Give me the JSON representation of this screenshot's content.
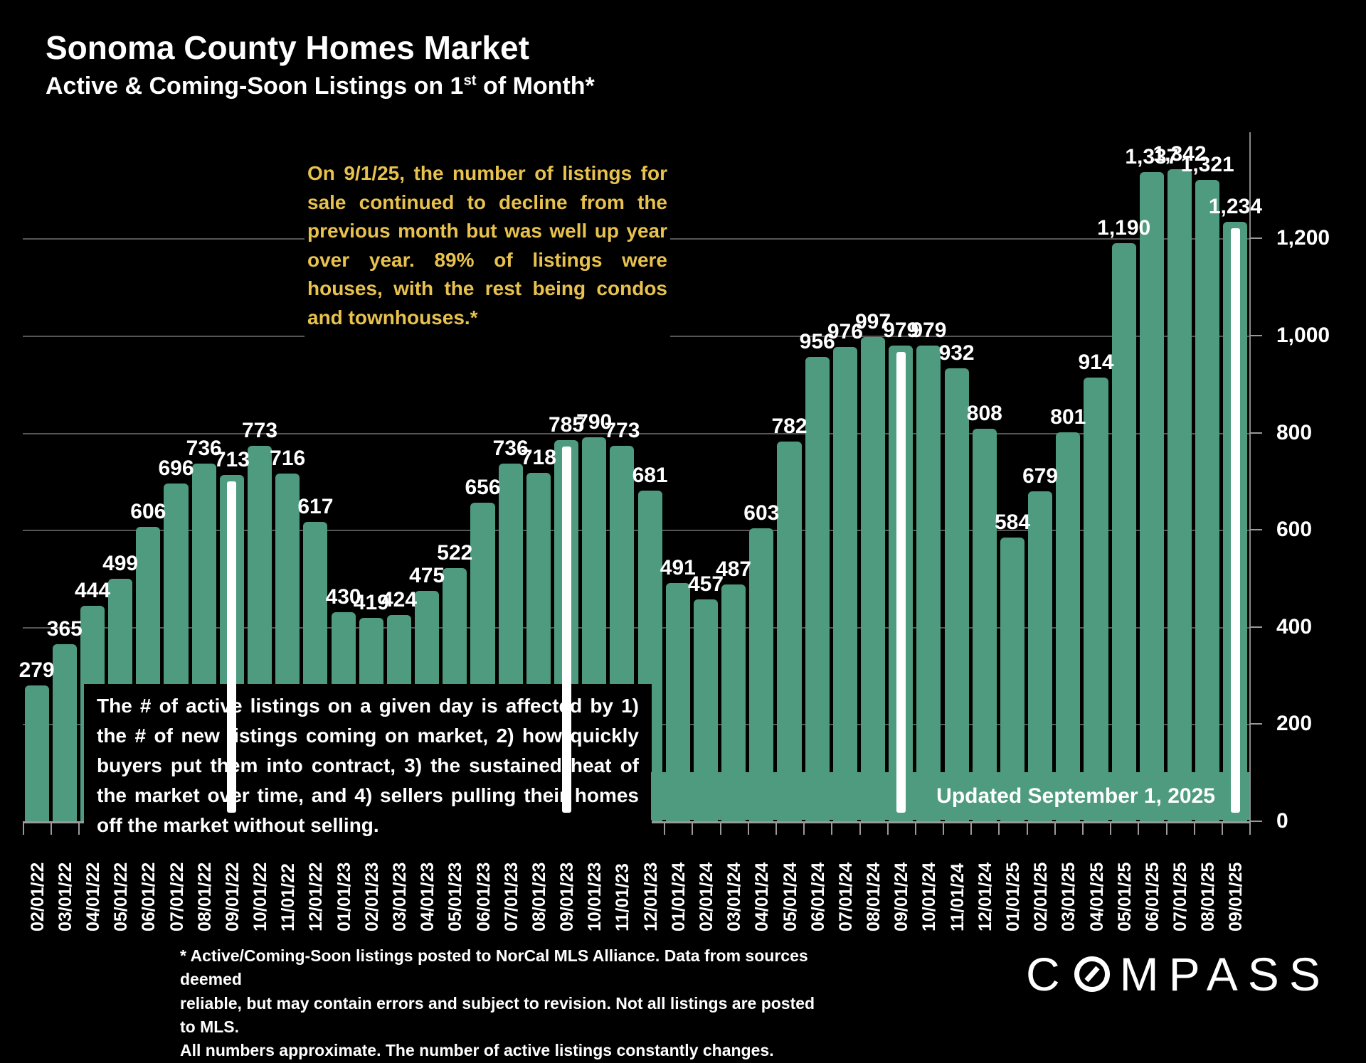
{
  "header": {
    "title": "Sonoma County Homes Market",
    "subtitle_main": "Active & Coming-Soon Listings on 1",
    "subtitle_sup": "st",
    "subtitle_tail": " of Month*"
  },
  "annotations": {
    "top_note": "On 9/1/25, the number of listings for sale continued to decline from the previous month but was well up year over year. 89% of listings were houses, with the rest being condos and townhouses.*",
    "explainer": "The # of active listings on a given day is affected by 1) the # of new listings coming on market, 2) how quickly buyers put them into contract, 3) the sustained heat of the market over time, and 4) sellers pulling their homes off the market without selling.",
    "updated": "Updated September 1, 2025",
    "footnote": "* Active/Coming-Soon listings posted to NorCal MLS Alliance.  Data from sources deemed\nreliable, but may contain errors and subject to revision.  Not all listings are posted to MLS.\nAll numbers approximate. The number of active listings constantly changes."
  },
  "logo": {
    "name": "COMPASS",
    "part1": "C",
    "part2": "MPASS"
  },
  "colors": {
    "background": "#000000",
    "bar": "#4E9B80",
    "accent_yellow": "#E8C24E",
    "september_marker_stripe": "#FFFFFF",
    "gridline": "#565656"
  },
  "chart_data": {
    "type": "bar",
    "title": "Sonoma County Homes Market — Active & Coming-Soon Listings on 1st of Month",
    "xlabel": "",
    "ylabel": "",
    "ylim": [
      0,
      1400
    ],
    "yticks": [
      0,
      200,
      400,
      600,
      800,
      1000,
      1200
    ],
    "grid": "horizontal",
    "axis_side": "right",
    "legend": "none",
    "categories": [
      "02/01/22",
      "03/01/22",
      "04/01/22",
      "05/01/22",
      "06/01/22",
      "07/01/22",
      "08/01/22",
      "09/01/22",
      "10/01/22",
      "11/01/22",
      "12/01/22",
      "01/01/23",
      "02/01/23",
      "03/01/23",
      "04/01/23",
      "05/01/23",
      "06/01/23",
      "07/01/23",
      "08/01/23",
      "09/01/23",
      "10/01/23",
      "11/01/23",
      "12/01/23",
      "01/01/24",
      "02/01/24",
      "03/01/24",
      "04/01/24",
      "05/01/24",
      "06/01/24",
      "07/01/24",
      "08/01/24",
      "09/01/24",
      "10/01/24",
      "11/01/24",
      "12/01/24",
      "01/01/25",
      "02/01/25",
      "03/01/25",
      "04/01/25",
      "05/01/25",
      "06/01/25",
      "07/01/25",
      "08/01/25",
      "09/01/25"
    ],
    "values": [
      279,
      365,
      444,
      499,
      606,
      696,
      736,
      713,
      773,
      716,
      617,
      430,
      419,
      424,
      475,
      522,
      656,
      736,
      718,
      785,
      790,
      773,
      681,
      491,
      457,
      487,
      603,
      782,
      956,
      976,
      997,
      979,
      979,
      932,
      808,
      584,
      679,
      801,
      914,
      1190,
      1337,
      1342,
      1321,
      1234
    ],
    "marked_september_bars": [
      "09/01/22",
      "09/01/23",
      "09/01/24",
      "09/01/25"
    ]
  }
}
